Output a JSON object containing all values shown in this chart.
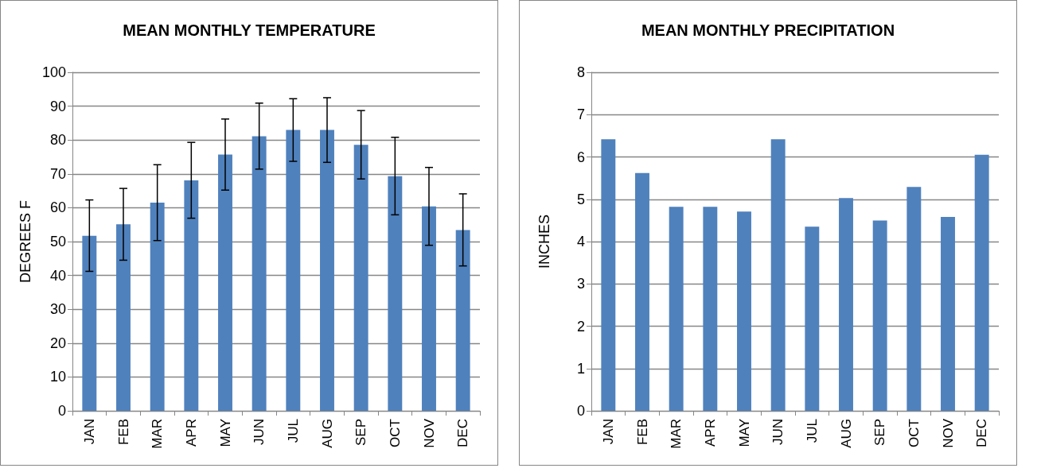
{
  "chart_data": [
    {
      "type": "bar",
      "title": "MEAN MONTHLY TEMPERATURE",
      "ylabel": "DEGREES F",
      "categories": [
        "JAN",
        "FEB",
        "MAR",
        "APR",
        "MAY",
        "JUN",
        "JUL",
        "AUG",
        "SEP",
        "OCT",
        "NOV",
        "DEC"
      ],
      "series": [
        {
          "color": "#4f81bd",
          "values": [
            51.7,
            55.1,
            61.5,
            68.1,
            75.7,
            81.1,
            83,
            83,
            78.6,
            69.3,
            60.4,
            53.4
          ],
          "errors": [
            [
              41.2,
              62.3
            ],
            [
              44.5,
              65.7
            ],
            [
              50.3,
              72.7
            ],
            [
              56.9,
              79.3
            ],
            [
              65.2,
              86.2
            ],
            [
              71.4,
              90.9
            ],
            [
              73.7,
              92.2
            ],
            [
              73.4,
              92.5
            ],
            [
              68.5,
              88.7
            ],
            [
              57.9,
              80.8
            ],
            [
              48.9,
              71.9
            ],
            [
              42.8,
              64.1
            ]
          ]
        }
      ],
      "ylim": [
        0,
        100
      ],
      "yticks": [
        0,
        10,
        20,
        30,
        40,
        50,
        60,
        70,
        80,
        90,
        100
      ],
      "grid": "y"
    },
    {
      "type": "bar",
      "title": "MEAN MONTHLY PRECIPITATION",
      "ylabel": "INCHES",
      "categories": [
        "JAN",
        "FEB",
        "MAR",
        "APR",
        "MAY",
        "JUN",
        "JUL",
        "AUG",
        "SEP",
        "OCT",
        "NOV",
        "DEC"
      ],
      "series": [
        {
          "color": "#4f81bd",
          "values": [
            6.42,
            5.62,
            4.82,
            4.82,
            4.71,
            6.42,
            4.35,
            5.03,
            4.5,
            5.29,
            4.58,
            6.05
          ]
        }
      ],
      "ylim": [
        0,
        8
      ],
      "yticks": [
        0,
        1,
        2,
        3,
        4,
        5,
        6,
        7,
        8
      ],
      "grid": "y"
    }
  ]
}
